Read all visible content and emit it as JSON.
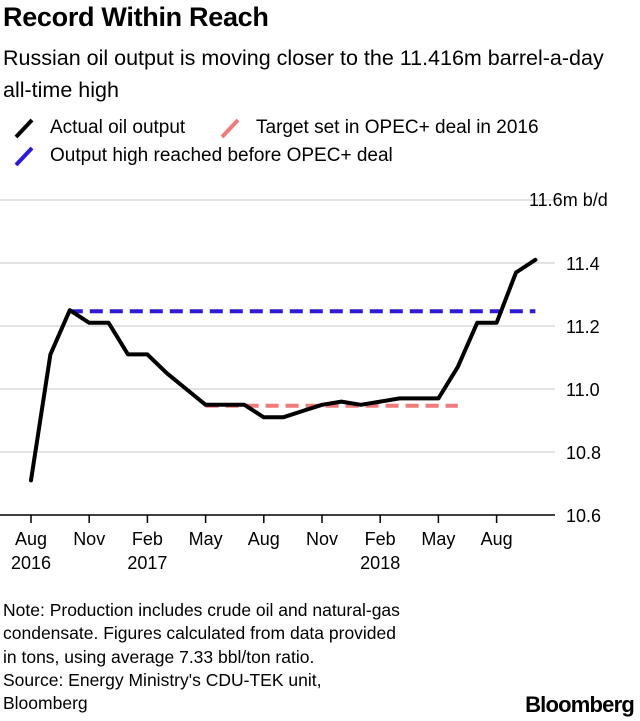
{
  "header": {
    "title": "Record Within Reach",
    "subtitle": "Russian oil output is moving closer to the 11.416m barrel-a-day all-time high"
  },
  "legend": {
    "items": [
      {
        "label": "Actual oil output",
        "color": "#000000"
      },
      {
        "label": "Target set in OPEC+ deal in 2016",
        "color": "#f07b7b"
      },
      {
        "label": "Output high reached before OPEC+ deal",
        "color": "#2d1ad6"
      }
    ]
  },
  "chart_data": {
    "type": "line",
    "ylim": [
      10.6,
      11.6
    ],
    "y_ticks": [
      {
        "value": 11.6,
        "label": "11.6m b/d"
      },
      {
        "value": 11.4,
        "label": "11.4"
      },
      {
        "value": 11.2,
        "label": "11.2"
      },
      {
        "value": 11.0,
        "label": "11.0"
      },
      {
        "value": 10.8,
        "label": "10.8"
      },
      {
        "value": 10.6,
        "label": "10.6"
      }
    ],
    "x_ticks": [
      {
        "x": "2016-08",
        "label": "Aug",
        "sub": "2016"
      },
      {
        "x": "2016-11",
        "label": "Nov",
        "sub": ""
      },
      {
        "x": "2017-02",
        "label": "Feb",
        "sub": "2017"
      },
      {
        "x": "2017-05",
        "label": "May",
        "sub": ""
      },
      {
        "x": "2017-08",
        "label": "Aug",
        "sub": ""
      },
      {
        "x": "2017-11",
        "label": "Nov",
        "sub": ""
      },
      {
        "x": "2018-02",
        "label": "Feb",
        "sub": "2018"
      },
      {
        "x": "2018-05",
        "label": "May",
        "sub": ""
      },
      {
        "x": "2018-08",
        "label": "Aug",
        "sub": ""
      }
    ],
    "series": [
      {
        "name": "Actual oil output",
        "color": "#000000",
        "style": "solid",
        "x": [
          "2016-08",
          "2016-09",
          "2016-10",
          "2016-11",
          "2016-12",
          "2017-01",
          "2017-02",
          "2017-03",
          "2017-04",
          "2017-05",
          "2017-06",
          "2017-07",
          "2017-08",
          "2017-09",
          "2017-10",
          "2017-11",
          "2017-12",
          "2018-01",
          "2018-02",
          "2018-03",
          "2018-04",
          "2018-05",
          "2018-06",
          "2018-07",
          "2018-08",
          "2018-09",
          "2018-10"
        ],
        "values": [
          10.71,
          11.11,
          11.25,
          11.21,
          11.21,
          11.11,
          11.11,
          11.05,
          11.0,
          10.95,
          10.95,
          10.95,
          10.91,
          10.91,
          10.93,
          10.95,
          10.96,
          10.95,
          10.96,
          10.97,
          10.97,
          10.97,
          11.07,
          11.21,
          11.21,
          11.37,
          11.41
        ]
      },
      {
        "name": "Target set in OPEC+ deal in 2016",
        "color": "#f07b7b",
        "style": "dashed",
        "x": [
          "2017-05",
          "2018-06"
        ],
        "values": [
          10.947,
          10.947
        ]
      },
      {
        "name": "Output high reached before OPEC+ deal",
        "color": "#2d1ad6",
        "style": "dashed",
        "x": [
          "2016-10",
          "2018-10"
        ],
        "values": [
          11.247,
          11.247
        ]
      }
    ]
  },
  "notes": {
    "lines": [
      "Note: Production includes crude oil and natural-gas",
      "condensate. Figures calculated from data provided",
      "in tons, using average 7.33 bbl/ton ratio.",
      "Source: Energy Ministry's CDU-TEK unit,",
      "Bloomberg"
    ]
  },
  "brand": "Bloomberg"
}
